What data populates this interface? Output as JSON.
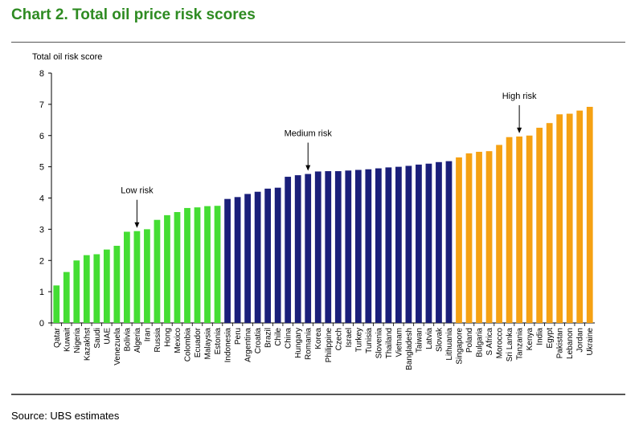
{
  "page": {
    "title": "Chart 2. Total oil price risk scores",
    "source": "Source: UBS estimates"
  },
  "colors": {
    "low": "#44dd33",
    "medium": "#1a1f7a",
    "high": "#f5a113",
    "title": "#2e8b22"
  },
  "chart_data": {
    "type": "bar",
    "title": "Chart 2. Total oil price risk scores",
    "ylabel": "Total oil risk score",
    "xlabel": "",
    "ylim": [
      0,
      8
    ],
    "yticks": [
      "0",
      "1",
      "2",
      "3",
      "4",
      "5",
      "6",
      "7",
      "8"
    ],
    "grid": false,
    "categories": [
      "Qatar",
      "Kuwait",
      "Nigeria",
      "Kazakhst",
      "Saudi",
      "UAE",
      "Venezuela",
      "Bolivia",
      "Algeria",
      "Iran",
      "Russia",
      "Hong",
      "Mexico",
      "Colombia",
      "Ecuador",
      "Malaysia",
      "Estonia",
      "Indonesia",
      "Peru",
      "Argentina",
      "Croatia",
      "Brazil",
      "Chile",
      "China",
      "Hungary",
      "Romania",
      "Korea",
      "Philippine",
      "Czech",
      "Israel",
      "Turkey",
      "Tunisia",
      "Slovenia",
      "Thailand",
      "Vietnam",
      "Bangladesh",
      "Taiwan",
      "Latvia",
      "Slovak",
      "Lithuania",
      "Singapore",
      "Poland",
      "Bulgaria",
      "S Africa",
      "Morocco",
      "Sri Lanka",
      "Tanzania",
      "Kenya",
      "India",
      "Egypt",
      "Pakistan",
      "Lebanon",
      "Jordan",
      "Ukraine"
    ],
    "values": [
      1.2,
      1.63,
      2.0,
      2.17,
      2.2,
      2.35,
      2.47,
      2.92,
      2.94,
      3.0,
      3.3,
      3.45,
      3.55,
      3.68,
      3.7,
      3.74,
      3.75,
      3.97,
      4.03,
      4.13,
      4.2,
      4.3,
      4.33,
      4.68,
      4.73,
      4.77,
      4.85,
      4.86,
      4.86,
      4.88,
      4.9,
      4.92,
      4.95,
      4.98,
      5.0,
      5.03,
      5.07,
      5.1,
      5.15,
      5.18,
      5.3,
      5.43,
      5.48,
      5.5,
      5.7,
      5.95,
      5.97,
      6.0,
      6.25,
      6.4,
      6.68,
      6.7,
      6.8,
      6.92
    ],
    "groups": [
      {
        "name": "Low risk",
        "start": 0,
        "end": 16,
        "color": "#44dd33",
        "annotation": "Low risk",
        "arrow_index": 8
      },
      {
        "name": "Medium risk",
        "start": 17,
        "end": 39,
        "color": "#1a1f7a",
        "annotation": "Medium risk",
        "arrow_index": 25
      },
      {
        "name": "High risk",
        "start": 40,
        "end": 53,
        "color": "#f5a113",
        "annotation": "High risk",
        "arrow_index": 46
      }
    ]
  }
}
